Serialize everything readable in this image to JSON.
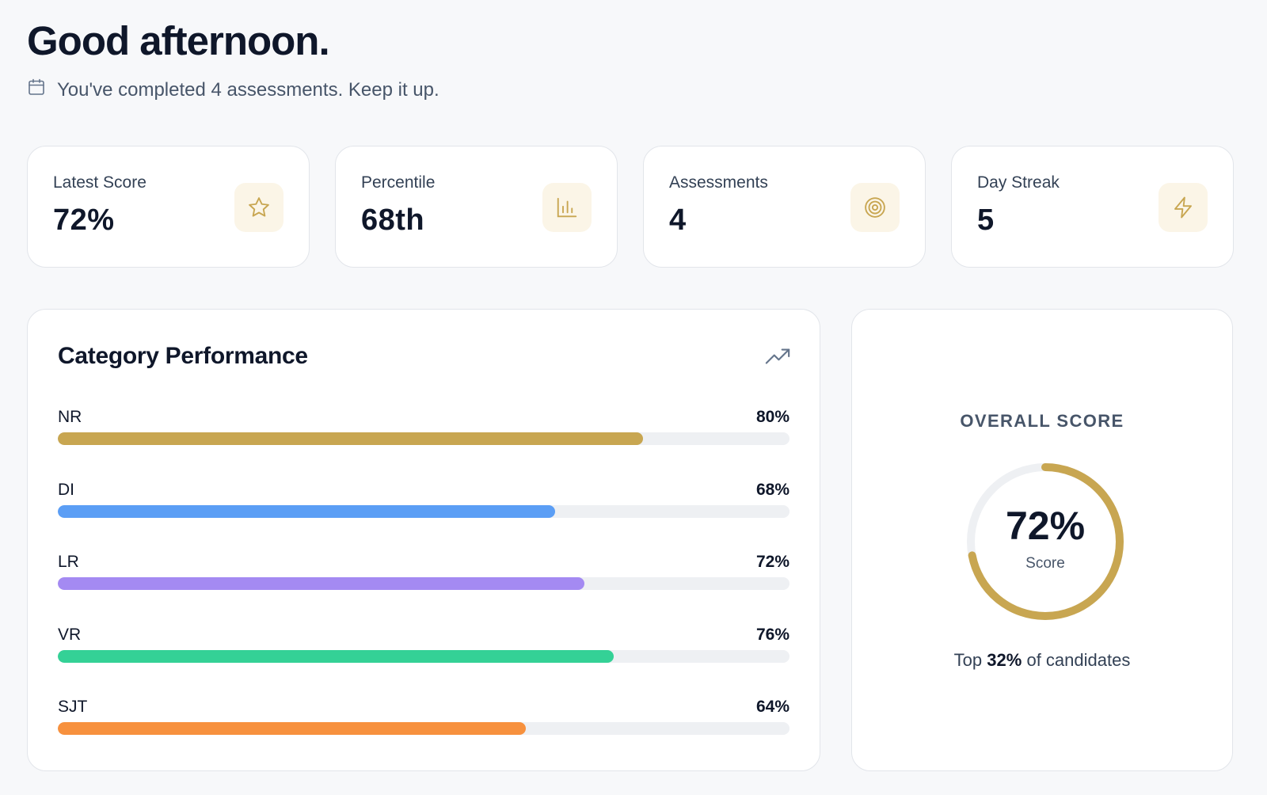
{
  "greeting": "Good afternoon.",
  "subline": "You've completed 4 assessments. Keep it up.",
  "accent_color": "#c8a651",
  "stats": [
    {
      "label": "Latest Score",
      "value": "72%",
      "icon": "star-icon"
    },
    {
      "label": "Percentile",
      "value": "68th",
      "icon": "bar-chart-icon"
    },
    {
      "label": "Assessments",
      "value": "4",
      "icon": "target-icon"
    },
    {
      "label": "Day Streak",
      "value": "5",
      "icon": "lightning-icon"
    }
  ],
  "performance": {
    "title": "Category Performance",
    "icon": "trending-up-icon",
    "categories": [
      {
        "name": "NR",
        "percent_label": "80%",
        "value": 80,
        "color": "#c8a651"
      },
      {
        "name": "DI",
        "percent_label": "68%",
        "value": 68,
        "color": "#5b9ef5"
      },
      {
        "name": "LR",
        "percent_label": "72%",
        "value": 72,
        "color": "#a48af2"
      },
      {
        "name": "VR",
        "percent_label": "76%",
        "value": 76,
        "color": "#34d196"
      },
      {
        "name": "SJT",
        "percent_label": "64%",
        "value": 64,
        "color": "#f7913e"
      }
    ]
  },
  "overall": {
    "heading": "OVERALL SCORE",
    "value_label": "72%",
    "value": 72,
    "sub_label": "Score",
    "rank_prefix": "Top",
    "rank_value": "32%",
    "rank_suffix": "of candidates"
  }
}
